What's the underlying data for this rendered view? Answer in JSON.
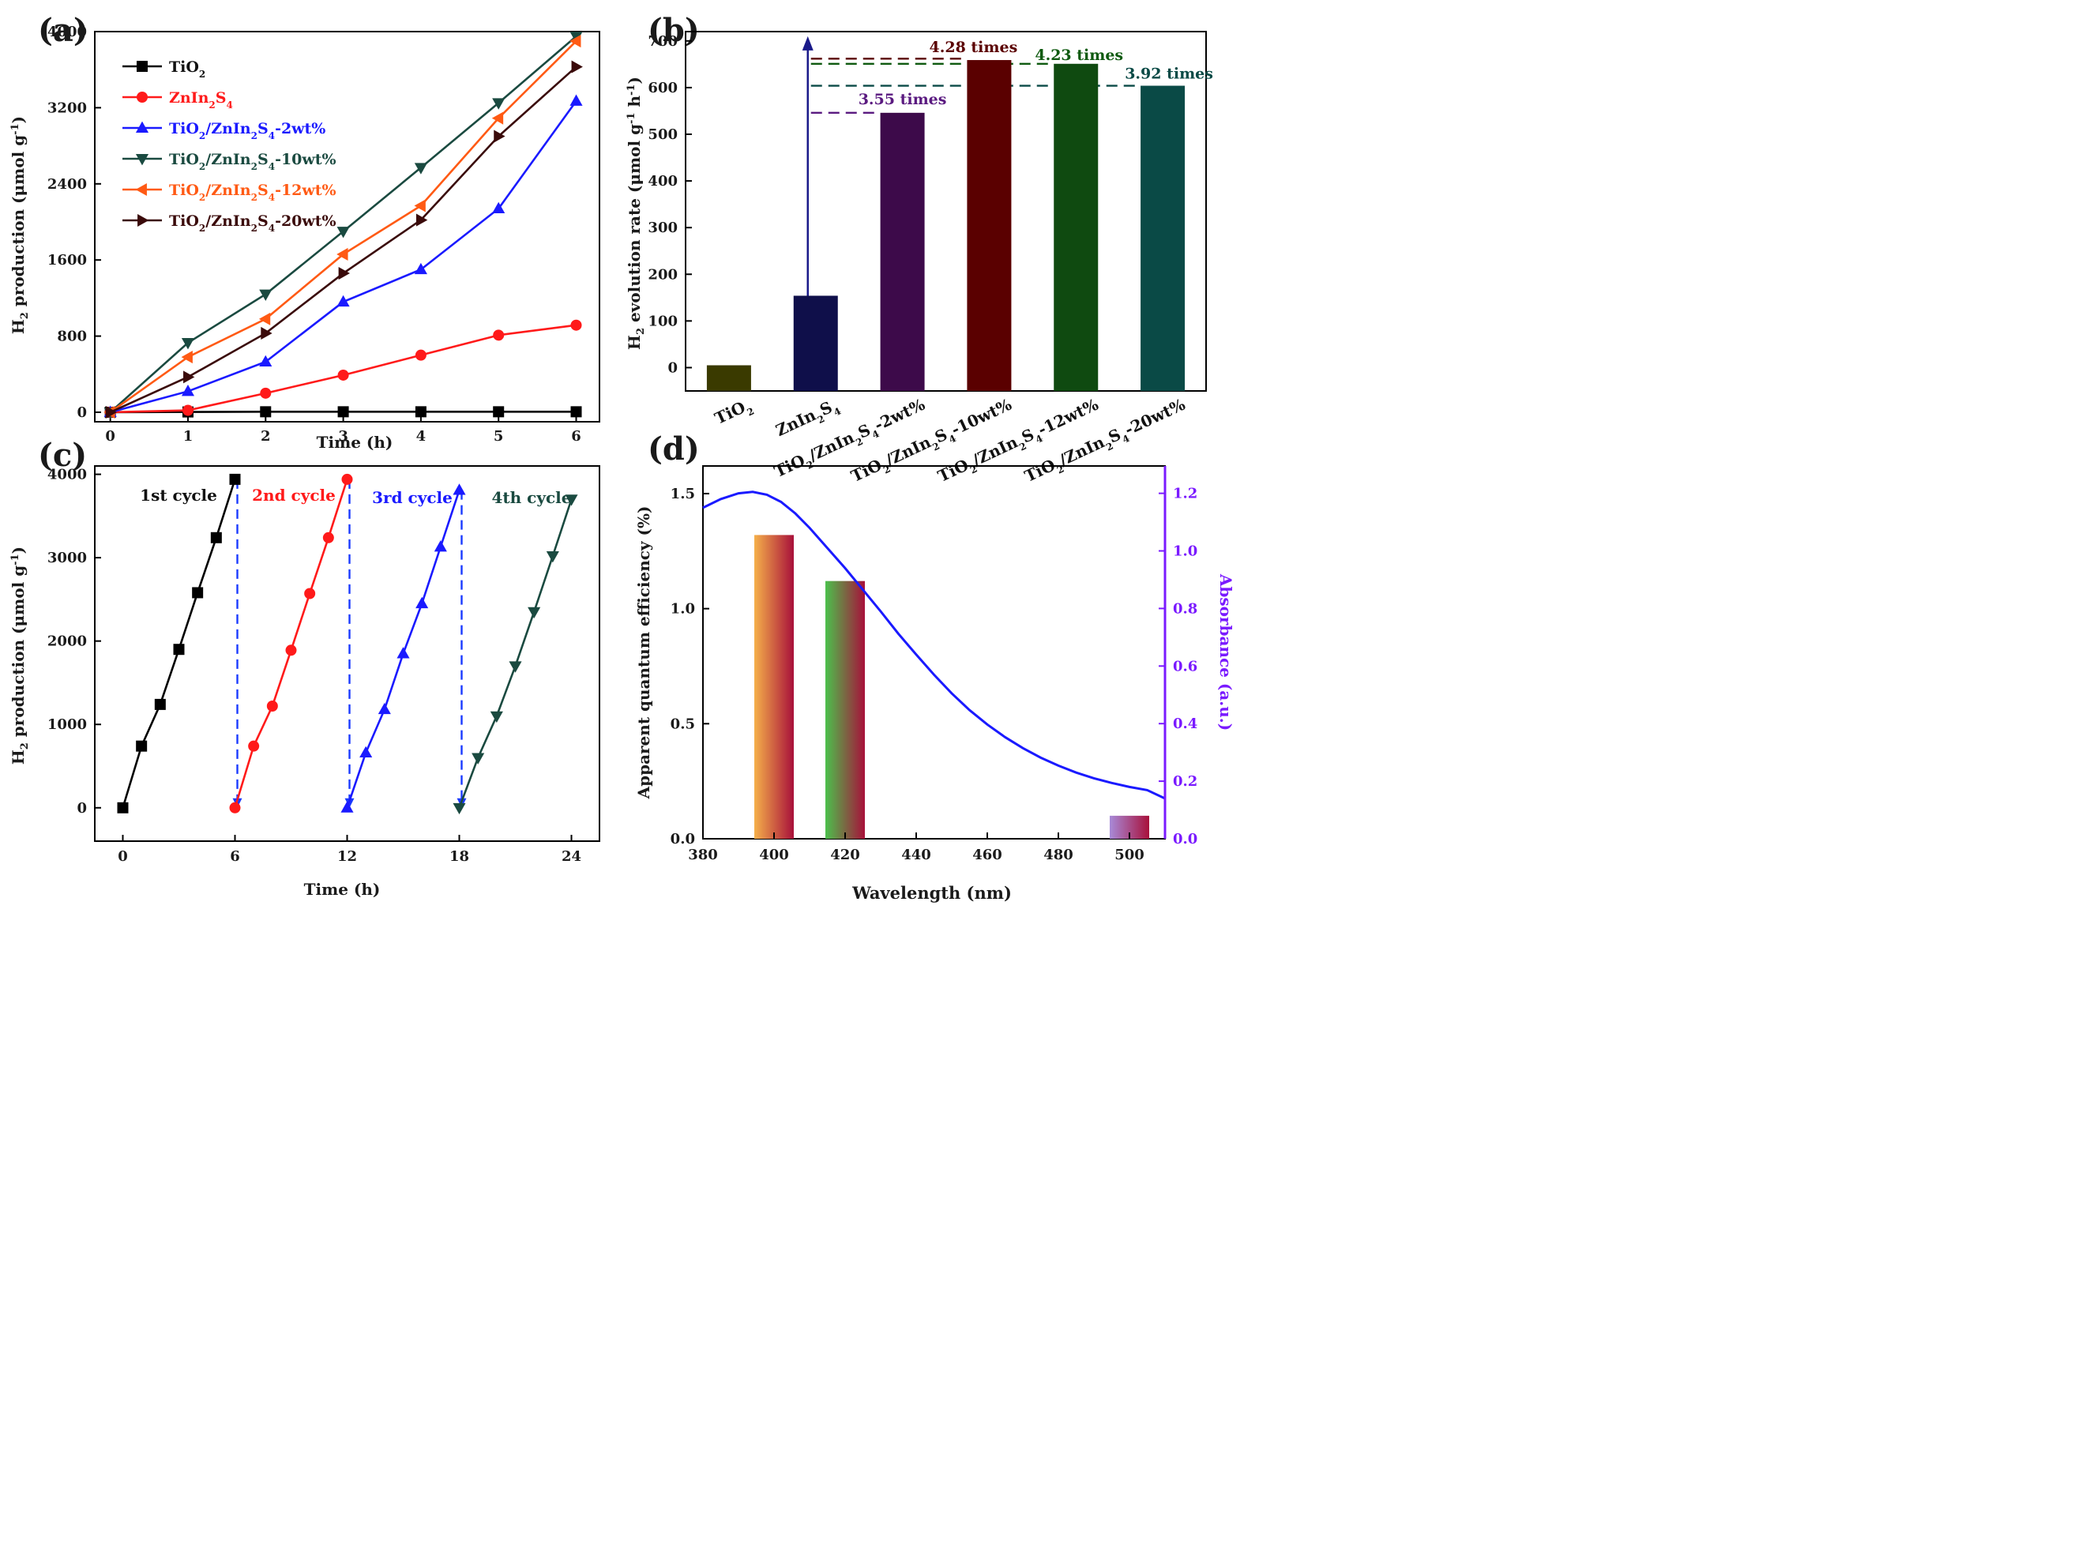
{
  "chart_data": [
    {
      "panel": "(a)",
      "type": "line",
      "xlabel": "Time (h)",
      "ylabel": "H₂ production (μmol g⁻¹)",
      "xlim": [
        -0.2,
        6.3
      ],
      "ylim": [
        -100,
        4000
      ],
      "xticks": [
        0,
        1,
        2,
        3,
        4,
        5,
        6
      ],
      "yticks": [
        0,
        800,
        1600,
        2400,
        3200,
        4000
      ],
      "x": [
        0,
        1,
        2,
        3,
        4,
        5,
        6
      ],
      "series": [
        {
          "name": "TiO₂",
          "color": "#000000",
          "marker": "square",
          "values": [
            0,
            3,
            5,
            5,
            5,
            5,
            5
          ]
        },
        {
          "name": "ZnIn₂S₄",
          "color": "#ff1a1a",
          "marker": "circle",
          "values": [
            0,
            20,
            200,
            390,
            600,
            810,
            915
          ]
        },
        {
          "name": "TiO₂/ZnIn₂S₄-2wt%",
          "color": "#1a1aff",
          "marker": "triangle-up",
          "values": [
            0,
            220,
            530,
            1160,
            1500,
            2140,
            3270
          ]
        },
        {
          "name": "TiO₂/ZnIn₂S₄-10wt%",
          "color": "#1a4a40",
          "marker": "triangle-down",
          "values": [
            0,
            730,
            1240,
            1900,
            2570,
            3250,
            3950
          ]
        },
        {
          "name": "TiO₂/ZnIn₂S₄-12wt%",
          "color": "#ff5a14",
          "marker": "triangle-left",
          "values": [
            0,
            580,
            980,
            1660,
            2170,
            3090,
            3900
          ]
        },
        {
          "name": "TiO₂/ZnIn₂S₄-20wt%",
          "color": "#3a0a0a",
          "marker": "triangle-right",
          "values": [
            0,
            370,
            830,
            1460,
            2020,
            2900,
            3630
          ]
        }
      ]
    },
    {
      "panel": "(b)",
      "type": "bar",
      "ylabel": "H₂ evolution rate (μmol g⁻¹ h⁻¹)",
      "ylim": [
        -50,
        720
      ],
      "yticks": [
        0,
        100,
        200,
        300,
        400,
        500,
        600,
        700
      ],
      "categories": [
        "TiO₂",
        "ZnIn₂S₄",
        "TiO₂/ZnIn₂S₄-2wt%",
        "TiO₂/ZnIn₂S₄-10wt%",
        "TiO₂/ZnIn₂S₄-12wt%",
        "TiO₂/ZnIn₂S₄-20wt%"
      ],
      "values": [
        1,
        154,
        546,
        659,
        651,
        604
      ],
      "colors": [
        "#3a3a00",
        "#0f0f4a",
        "#3d0a4a",
        "#5a0000",
        "#0f4a10",
        "#0a4a46"
      ],
      "annotations": [
        {
          "text": "3.55 times",
          "color": "#5a1a80",
          "level": 546
        },
        {
          "text": "4.28 times",
          "color": "#5a0000",
          "level": 662
        },
        {
          "text": "4.23 times",
          "color": "#0f5a10",
          "level": 651
        },
        {
          "text": "3.92 times",
          "color": "#0a4a46",
          "level": 604
        }
      ]
    },
    {
      "panel": "(c)",
      "type": "line",
      "xlabel": "Time (h)",
      "ylabel": "H₂ production (μmol g⁻¹)",
      "xlim": [
        -1.5,
        25.5
      ],
      "ylim": [
        -400,
        4100
      ],
      "xticks": [
        0,
        6,
        12,
        18,
        24
      ],
      "yticks": [
        0,
        1000,
        2000,
        3000,
        4000
      ],
      "series": [
        {
          "name": "1st cycle",
          "color": "#000000",
          "marker": "square",
          "x": [
            0,
            1,
            2,
            3,
            4,
            5,
            6
          ],
          "values": [
            0,
            740,
            1240,
            1900,
            2580,
            3240,
            3940
          ]
        },
        {
          "name": "2nd cycle",
          "color": "#ff1a1a",
          "marker": "circle",
          "x": [
            6,
            7,
            8,
            9,
            10,
            11,
            12
          ],
          "values": [
            0,
            740,
            1220,
            1890,
            2570,
            3240,
            3940
          ]
        },
        {
          "name": "3rd cycle",
          "color": "#1a1aff",
          "marker": "triangle-up",
          "x": [
            12,
            13,
            14,
            15,
            16,
            17,
            18
          ],
          "values": [
            0,
            660,
            1180,
            1850,
            2450,
            3130,
            3810
          ]
        },
        {
          "name": "4th cycle",
          "color": "#1a4a40",
          "marker": "triangle-down",
          "x": [
            18,
            19,
            20,
            21,
            22,
            23,
            24
          ],
          "values": [
            0,
            600,
            1100,
            1700,
            2350,
            3020,
            3700
          ]
        }
      ],
      "dashed_connectors_x": [
        6,
        12,
        18
      ]
    },
    {
      "panel": "(d)",
      "type": "bar",
      "xlabel": "Wavelength (nm)",
      "ylabel": "Apparent quantum efficiency (%)",
      "y2label": "Absorbance (a.u.)",
      "xlim": [
        380,
        510
      ],
      "ylim": [
        0,
        1.62
      ],
      "y2lim": [
        0,
        1.295
      ],
      "xticks": [
        380,
        400,
        420,
        440,
        460,
        480,
        500
      ],
      "yticks": [
        0.0,
        0.5,
        1.0,
        1.5
      ],
      "y2ticks": [
        0.2,
        0.4,
        0.6,
        0.8,
        1.0,
        1.2
      ],
      "bars": [
        {
          "wavelength": 400,
          "value": 1.32,
          "from": "#f5b04a",
          "to": "#a8103a"
        },
        {
          "wavelength": 420,
          "value": 1.12,
          "from": "#4cc04c",
          "to": "#a8103a"
        },
        {
          "wavelength": 500,
          "value": 0.1,
          "from": "#a88ad8",
          "to": "#a8103a"
        }
      ],
      "absorbance": {
        "color": "#1a1aff",
        "x": [
          380,
          385,
          390,
          394,
          398,
          402,
          406,
          410,
          415,
          420,
          425,
          430,
          435,
          440,
          445,
          450,
          455,
          460,
          465,
          470,
          475,
          480,
          485,
          490,
          495,
          500,
          505,
          510
        ],
        "y": [
          1.15,
          1.18,
          1.2,
          1.205,
          1.195,
          1.17,
          1.13,
          1.08,
          1.01,
          0.94,
          0.865,
          0.79,
          0.712,
          0.64,
          0.57,
          0.505,
          0.447,
          0.397,
          0.353,
          0.315,
          0.282,
          0.254,
          0.23,
          0.21,
          0.194,
          0.18,
          0.169,
          0.14
        ]
      }
    }
  ],
  "panel_labels": [
    "(a)",
    "(b)",
    "(c)",
    "(d)"
  ],
  "labels": {
    "a_xlabel": "Time (h)",
    "a_ylabel_main": "H",
    "a_ylabel_sub": "2",
    "a_ylabel_rest": " production (μmol g",
    "a_ylabel_sup": "-1",
    "a_ylabel_end": ")",
    "b_ylabel_main": "H",
    "b_ylabel_sub": "2",
    "b_ylabel_mid": " evolution rate (μmol g",
    "b_ylabel_sup1": "-1",
    "b_ylabel_h": " h",
    "b_ylabel_sup2": "-1",
    "b_ylabel_end": ")",
    "c_xlabel": "Time (h)",
    "d_xlabel": "Wavelength (nm)",
    "d_ylabel": "Apparent quantum efficiency (%)",
    "d_y2label": "Absorbance (a.u.)"
  }
}
